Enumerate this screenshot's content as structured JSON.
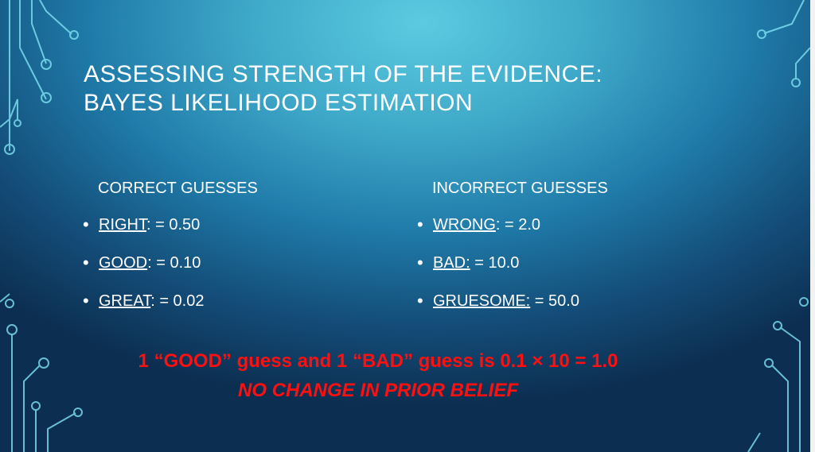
{
  "title": {
    "line1": "Assessing Strength of the Evidence:",
    "line2": "Bayes Likelihood Estimation"
  },
  "correct": {
    "header": "CORRECT GUESSES",
    "items": [
      {
        "term": "RIGHT",
        "value": ": = 0.50"
      },
      {
        "term": "GOOD",
        "value": ": = 0.10"
      },
      {
        "term": "GREAT",
        "value": ": = 0.02"
      }
    ]
  },
  "incorrect": {
    "header": "INCORRECT GUESSES",
    "items": [
      {
        "term": "WRONG",
        "value": ": = 2.0"
      },
      {
        "term": "BAD:",
        "value": " = 10.0"
      },
      {
        "term": "GRUESOME:",
        "value": " = 50.0"
      }
    ]
  },
  "conclusion": {
    "line1": "1 “GOOD” guess and 1 “BAD” guess is 0.1 × 10 = 1.0",
    "line2": "NO CHANGE IN PRIOR BELIEF"
  },
  "colors": {
    "accent": "#ff1010",
    "text": "#ffffff",
    "bg_light": "#5ccbe0",
    "bg_dark": "#0c2e50"
  }
}
